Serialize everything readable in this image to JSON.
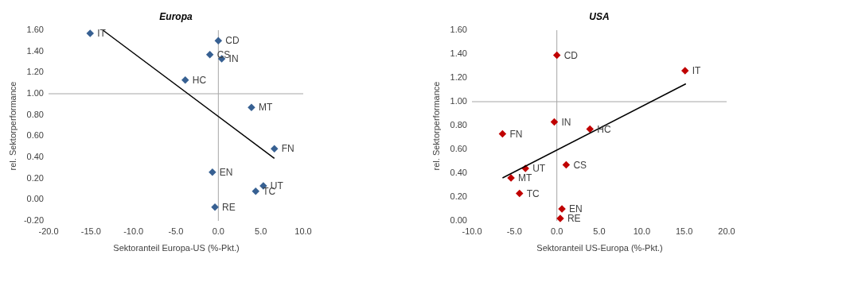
{
  "chart_data": [
    {
      "type": "scatter",
      "title": "Europa",
      "xlabel": "Sektoranteil Europa-US (%-Pkt.)",
      "ylabel": "rel. Sektorperformance",
      "xlim": [
        -20,
        10
      ],
      "xticks": [
        {
          "value": -20,
          "label": "-20.0"
        },
        {
          "value": -15,
          "label": "-15.0"
        },
        {
          "value": -10,
          "label": "-10.0"
        },
        {
          "value": -5,
          "label": "-5.0"
        },
        {
          "value": 0,
          "label": "0.0"
        },
        {
          "value": 5,
          "label": "5.0"
        },
        {
          "value": 10,
          "label": "10.0"
        }
      ],
      "ylim": [
        -0.2,
        1.6
      ],
      "yticks": [
        {
          "value": -0.2,
          "label": "-0.20"
        },
        {
          "value": 0,
          "label": "0.00"
        },
        {
          "value": 0.2,
          "label": "0.20"
        },
        {
          "value": 0.4,
          "label": "0.40"
        },
        {
          "value": 0.6,
          "label": "0.60"
        },
        {
          "value": 0.8,
          "label": "0.80"
        },
        {
          "value": 1.0,
          "label": "1.00"
        },
        {
          "value": 1.2,
          "label": "1.20"
        },
        {
          "value": 1.4,
          "label": "1.40"
        },
        {
          "value": 1.6,
          "label": "1.60"
        }
      ],
      "grid": false,
      "ref_lines": [
        {
          "axis": "y",
          "value": 1.0,
          "color": "#a6a6a6"
        },
        {
          "axis": "x",
          "value": 0,
          "color": "#a6a6a6"
        }
      ],
      "series": [
        {
          "marker": "diamond",
          "color": "#376092",
          "x": [
            -15.1,
            0.0,
            -1.0,
            0.4,
            -3.9,
            3.9,
            6.6,
            -0.7,
            5.3,
            4.4,
            -0.4
          ],
          "values": [
            1.57,
            1.5,
            1.37,
            1.33,
            1.13,
            0.87,
            0.48,
            0.26,
            0.13,
            0.08,
            -0.07
          ]
        },
        {
          "type": "line",
          "color": "#000000",
          "x": [
            -13.6,
            6.6
          ],
          "values": [
            1.6,
            0.39
          ]
        }
      ],
      "annotations": [
        {
          "text": "IT",
          "x": -15.1,
          "y": 1.57
        },
        {
          "text": "CD",
          "x": 0.0,
          "y": 1.5
        },
        {
          "text": "CS",
          "x": -1.0,
          "y": 1.37
        },
        {
          "text": "IN",
          "x": 0.4,
          "y": 1.33
        },
        {
          "text": "HC",
          "x": -3.9,
          "y": 1.13
        },
        {
          "text": "MT",
          "x": 3.9,
          "y": 0.87
        },
        {
          "text": "FN",
          "x": 6.6,
          "y": 0.48
        },
        {
          "text": "EN",
          "x": -0.7,
          "y": 0.26
        },
        {
          "text": "UT",
          "x": 5.3,
          "y": 0.13
        },
        {
          "text": "TC",
          "x": 4.4,
          "y": 0.08
        },
        {
          "text": "RE",
          "x": -0.4,
          "y": -0.07
        }
      ]
    },
    {
      "type": "scatter",
      "title": "USA",
      "xlabel": "Sektoranteil US-Europa (%-Pkt.)",
      "ylabel": "rel. Sektorperformance",
      "xlim": [
        -10,
        20
      ],
      "xticks": [
        {
          "value": -10,
          "label": "-10.0"
        },
        {
          "value": -5,
          "label": "-5.0"
        },
        {
          "value": 0,
          "label": "0.0"
        },
        {
          "value": 5,
          "label": "5.0"
        },
        {
          "value": 10,
          "label": "10.0"
        },
        {
          "value": 15,
          "label": "15.0"
        },
        {
          "value": 20,
          "label": "20.0"
        }
      ],
      "ylim": [
        0,
        1.6
      ],
      "yticks": [
        {
          "value": 0,
          "label": "0.00"
        },
        {
          "value": 0.2,
          "label": "0.20"
        },
        {
          "value": 0.4,
          "label": "0.40"
        },
        {
          "value": 0.6,
          "label": "0.60"
        },
        {
          "value": 0.8,
          "label": "0.80"
        },
        {
          "value": 1.0,
          "label": "1.00"
        },
        {
          "value": 1.2,
          "label": "1.20"
        },
        {
          "value": 1.4,
          "label": "1.40"
        },
        {
          "value": 1.6,
          "label": "1.60"
        }
      ],
      "grid": false,
      "ref_lines": [
        {
          "axis": "y",
          "value": 1.0,
          "color": "#a6a6a6"
        },
        {
          "axis": "x",
          "value": 0,
          "color": "#a6a6a6"
        }
      ],
      "series": [
        {
          "marker": "diamond",
          "color": "#c00000",
          "x": [
            0.0,
            15.1,
            -0.3,
            3.9,
            -6.4,
            1.1,
            -3.7,
            -5.4,
            -4.4,
            0.6,
            0.4
          ],
          "values": [
            1.39,
            1.26,
            0.83,
            0.77,
            0.73,
            0.47,
            0.44,
            0.36,
            0.23,
            0.1,
            0.02
          ]
        },
        {
          "type": "line",
          "color": "#000000",
          "x": [
            -6.4,
            15.2
          ],
          "values": [
            0.36,
            1.15
          ]
        }
      ],
      "annotations": [
        {
          "text": "CD",
          "x": 0.0,
          "y": 1.39
        },
        {
          "text": "IT",
          "x": 15.1,
          "y": 1.26
        },
        {
          "text": "IN",
          "x": -0.3,
          "y": 0.83
        },
        {
          "text": "HC",
          "x": 3.9,
          "y": 0.77
        },
        {
          "text": "FN",
          "x": -6.4,
          "y": 0.73
        },
        {
          "text": "CS",
          "x": 1.1,
          "y": 0.47
        },
        {
          "text": "UT",
          "x": -3.7,
          "y": 0.44
        },
        {
          "text": "MT",
          "x": -5.4,
          "y": 0.36
        },
        {
          "text": "TC",
          "x": -4.4,
          "y": 0.23
        },
        {
          "text": "EN",
          "x": 0.6,
          "y": 0.1
        },
        {
          "text": "RE",
          "x": 0.4,
          "y": 0.02
        }
      ]
    }
  ]
}
